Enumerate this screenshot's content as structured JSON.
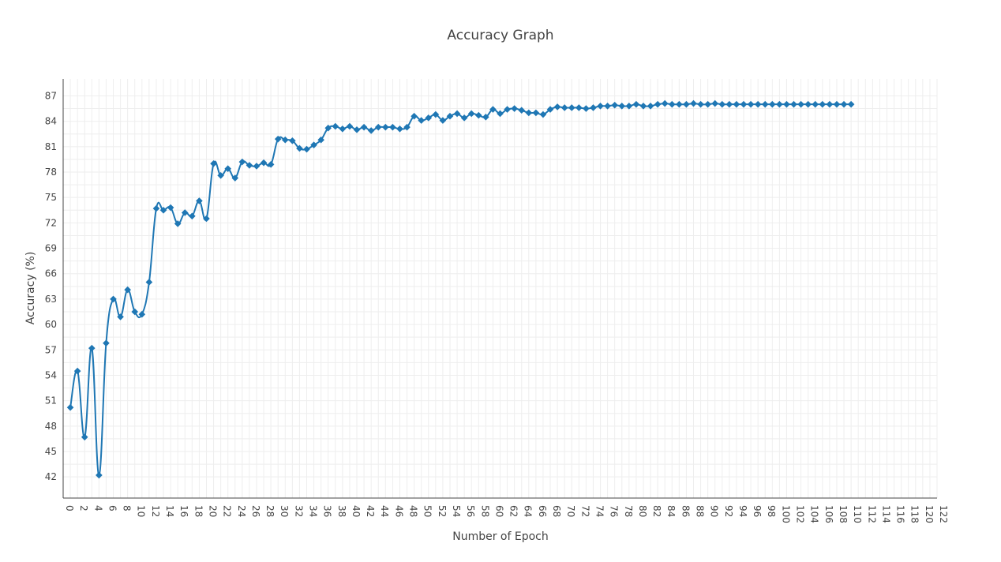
{
  "chart_data": {
    "type": "line",
    "title": "Accuracy Graph",
    "xlabel": "Number of Epoch",
    "ylabel": "Accuracy (%)",
    "xlim": [
      0,
      122
    ],
    "ylim": [
      39.5,
      89
    ],
    "x_ticks": [
      0,
      2,
      4,
      6,
      8,
      10,
      12,
      14,
      16,
      18,
      20,
      22,
      24,
      26,
      28,
      30,
      32,
      34,
      36,
      38,
      40,
      42,
      44,
      46,
      48,
      50,
      52,
      54,
      56,
      58,
      60,
      62,
      64,
      66,
      68,
      70,
      72,
      74,
      76,
      78,
      80,
      82,
      84,
      86,
      88,
      90,
      92,
      94,
      96,
      98,
      100,
      102,
      104,
      106,
      108,
      110,
      112,
      114,
      116,
      118,
      120,
      122
    ],
    "y_ticks": [
      42,
      45,
      48,
      51,
      54,
      57,
      60,
      63,
      66,
      69,
      72,
      75,
      78,
      81,
      84,
      87
    ],
    "grid": true,
    "marker": "diamond",
    "color": "#1f77b4",
    "series": [
      {
        "x": [
          1,
          2,
          3,
          4,
          5,
          6,
          7,
          8,
          9,
          10,
          11,
          12,
          13,
          14,
          15,
          16,
          17,
          18,
          19,
          20,
          21,
          22,
          23,
          24,
          25,
          26,
          27,
          28,
          29,
          30,
          31,
          32,
          33,
          34,
          35,
          36,
          37,
          38,
          39,
          40,
          41,
          42,
          43,
          44,
          45,
          46,
          47,
          48,
          49,
          50,
          51,
          52,
          53,
          54,
          55,
          56,
          57,
          58,
          59,
          60,
          61,
          62,
          63,
          64,
          65,
          66,
          67,
          68,
          69,
          70,
          71,
          72,
          73,
          74,
          75,
          76,
          77,
          78,
          79,
          80,
          81,
          82,
          83,
          84,
          85,
          86,
          87,
          88,
          89,
          90,
          91,
          92,
          93,
          94,
          95,
          96,
          97,
          98,
          99,
          100,
          101,
          102,
          103,
          104,
          105,
          106,
          107,
          108,
          109,
          110
        ],
        "y": [
          50.2,
          54.5,
          46.7,
          57.2,
          42.2,
          57.8,
          63.0,
          60.9,
          64.1,
          61.5,
          61.2,
          65.0,
          73.7,
          73.5,
          73.8,
          71.9,
          73.2,
          72.8,
          74.6,
          72.5,
          79.0,
          77.6,
          78.4,
          77.3,
          79.2,
          78.8,
          78.7,
          79.1,
          78.9,
          81.9,
          81.8,
          81.7,
          80.8,
          80.7,
          81.2,
          81.8,
          83.2,
          83.4,
          83.1,
          83.4,
          83.0,
          83.3,
          82.9,
          83.3,
          83.3,
          83.3,
          83.1,
          83.3,
          84.6,
          84.1,
          84.4,
          84.8,
          84.1,
          84.6,
          84.9,
          84.4,
          84.9,
          84.7,
          84.5,
          85.4,
          84.9,
          85.4,
          85.5,
          85.3,
          85.0,
          85.0,
          84.8,
          85.4,
          85.7,
          85.6,
          85.6,
          85.6,
          85.5,
          85.6,
          85.8,
          85.8,
          85.9,
          85.8,
          85.8,
          86.0,
          85.8,
          85.8,
          86.0,
          86.1,
          86.0,
          86.0,
          86.0,
          86.1,
          86.0,
          86.0,
          86.1,
          86.0,
          86.0,
          86.0,
          86.0,
          86.0,
          86.0,
          86.0,
          86.0,
          86.0,
          86.0,
          86.0,
          86.0,
          86.0,
          86.0,
          86.0,
          86.0,
          86.0,
          86.0,
          86.0
        ]
      }
    ]
  }
}
